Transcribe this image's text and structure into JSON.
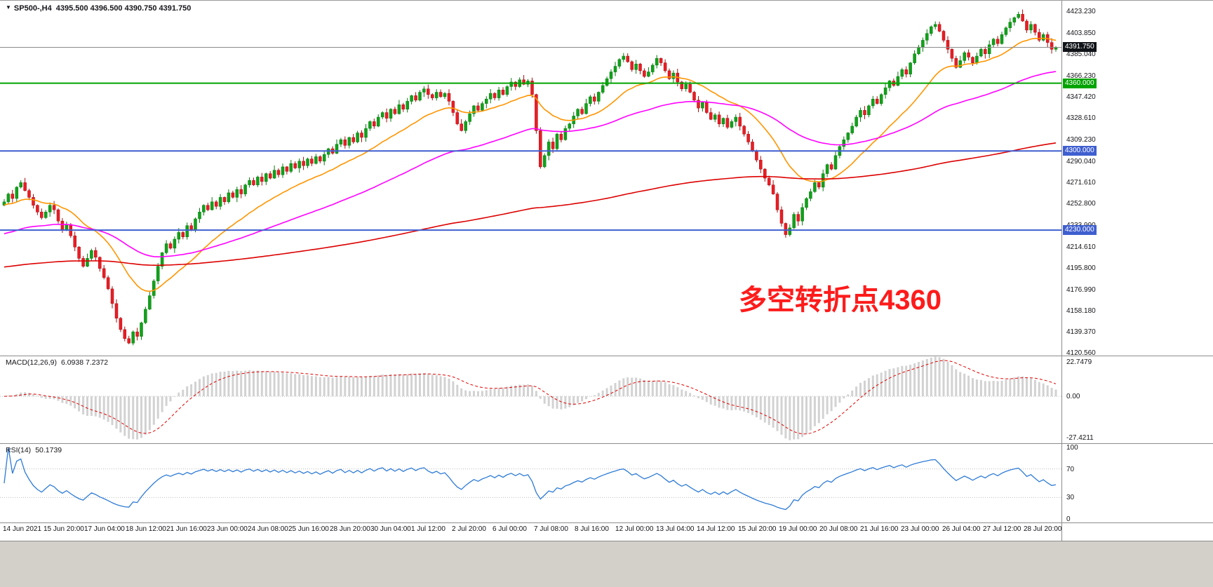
{
  "header": {
    "dropdown_icon": "▼",
    "symbol": "SP500-,H4",
    "ohlc": "4395.500 4396.500 4390.750 4391.750"
  },
  "annotation": {
    "text": "多空转折点4360"
  },
  "colors": {
    "up": "#10a21a",
    "up_dark": "#0a7a10",
    "down": "#ec1c24",
    "down_dark": "#a50d12",
    "price_line": "#8a8a8a",
    "price_badge_bg": "#101418",
    "macd_bar": "#d2d2d2",
    "macd_signal": "#e00000",
    "rsi_line": "#2e7bd6",
    "indicator_level": "#bdbdbd",
    "annotation": "#fe1b1b",
    "axis_text": "#15151a"
  },
  "price_axis": {
    "current_badge": "4391.750",
    "labels": [
      "4423.230",
      "4403.850",
      "4385.040",
      "4366.230",
      "4347.420",
      "4328.610",
      "4309.230",
      "4290.040",
      "4271.610",
      "4252.800",
      "4233.990",
      "4214.610",
      "4195.800",
      "4176.990",
      "4158.180",
      "4139.370",
      "4120.560"
    ]
  },
  "indicators": {
    "macd": {
      "label": "MACD(12,26,9)",
      "values": "6.0938 7.2372",
      "axis_labels": [
        "22.7479",
        "0.00",
        "-27.4211"
      ],
      "axis_values": [
        22.7479,
        0,
        -27.4211
      ],
      "params": {
        "fast": 12,
        "slow": 26,
        "signal": 9
      },
      "range": [
        26.5,
        -31
      ]
    },
    "rsi": {
      "label": "RSI(14)",
      "value": "50.1739",
      "axis_labels": [
        "100",
        "70",
        "30",
        "0"
      ],
      "axis_values": [
        100,
        70,
        30,
        0
      ],
      "levels": [
        70,
        30
      ],
      "period": 14,
      "range": [
        105,
        -5
      ]
    }
  },
  "time_axis": {
    "labels": [
      "14 Jun 2021",
      "15 Jun 20:00",
      "17 Jun 04:00",
      "18 Jun 12:00",
      "21 Jun 16:00",
      "23 Jun 00:00",
      "24 Jun 08:00",
      "25 Jun 16:00",
      "28 Jun 20:00",
      "30 Jun 04:00",
      "1 Jul 12:00",
      "2 Jul 20:00",
      "6 Jul 00:00",
      "7 Jul 08:00",
      "8 Jul 16:00",
      "12 Jul 00:00",
      "13 Jul 04:00",
      "14 Jul 12:00",
      "15 Jul 20:00",
      "19 Jul 00:00",
      "20 Jul 08:00",
      "21 Jul 16:00",
      "23 Jul 00:00",
      "26 Jul 04:00",
      "27 Jul 12:00",
      "28 Jul 20:00"
    ]
  },
  "chart_data": {
    "type": "candlestick",
    "symbol": "SP500-",
    "timeframe": "H4",
    "title": "SP500-,H4",
    "y_range": [
      4119,
      4433
    ],
    "current_price": 4391.75,
    "open_start": 4252,
    "closes": [
      4255,
      4262,
      4258,
      4268,
      4272,
      4265,
      4259,
      4252,
      4246,
      4241,
      4246,
      4252,
      4248,
      4238,
      4230,
      4235,
      4225,
      4215,
      4205,
      4198,
      4205,
      4212,
      4206,
      4196,
      4188,
      4178,
      4165,
      4152,
      4142,
      4134,
      4130,
      4140,
      4136,
      4148,
      4160,
      4172,
      4185,
      4198,
      4210,
      4218,
      4214,
      4222,
      4228,
      4224,
      4234,
      4230,
      4240,
      4246,
      4252,
      4248,
      4255,
      4251,
      4259,
      4255,
      4263,
      4259,
      4266,
      4262,
      4270,
      4274,
      4270,
      4277,
      4273,
      4280,
      4276,
      4283,
      4279,
      4286,
      4282,
      4289,
      4285,
      4291,
      4287,
      4293,
      4289,
      4295,
      4291,
      4297,
      4302,
      4298,
      4306,
      4310,
      4305,
      4312,
      4308,
      4316,
      4312,
      4320,
      4326,
      4322,
      4330,
      4334,
      4329,
      4337,
      4333,
      4341,
      4337,
      4344,
      4349,
      4345,
      4352,
      4355,
      4350,
      4347,
      4352,
      4348,
      4351,
      4344,
      4334,
      4324,
      4318,
      4326,
      4333,
      4340,
      4336,
      4342,
      4346,
      4351,
      4347,
      4354,
      4350,
      4357,
      4361,
      4357,
      4363,
      4359,
      4362,
      4350,
      4318,
      4286,
      4296,
      4308,
      4302,
      4315,
      4310,
      4320,
      4324,
      4331,
      4337,
      4333,
      4342,
      4348,
      4344,
      4352,
      4358,
      4364,
      4370,
      4375,
      4381,
      4384,
      4379,
      4372,
      4377,
      4371,
      4366,
      4370,
      4376,
      4382,
      4378,
      4371,
      4364,
      4369,
      4361,
      4355,
      4359,
      4352,
      4345,
      4338,
      4343,
      4334,
      4328,
      4332,
      4324,
      4329,
      4321,
      4326,
      4330,
      4322,
      4315,
      4308,
      4300,
      4292,
      4284,
      4276,
      4270,
      4262,
      4248,
      4236,
      4226,
      4232,
      4244,
      4238,
      4250,
      4258,
      4264,
      4272,
      4268,
      4280,
      4288,
      4284,
      4296,
      4304,
      4310,
      4316,
      4322,
      4330,
      4336,
      4332,
      4340,
      4346,
      4342,
      4350,
      4356,
      4362,
      4358,
      4366,
      4372,
      4368,
      4378,
      4386,
      4392,
      4398,
      4404,
      4410,
      4412,
      4406,
      4398,
      4390,
      4382,
      4374,
      4380,
      4387,
      4383,
      4378,
      4384,
      4390,
      4386,
      4394,
      4399,
      4395,
      4403,
      4409,
      4414,
      4418,
      4421,
      4415,
      4407,
      4412,
      4405,
      4398,
      4403,
      4396,
      4390,
      4391.75
    ],
    "wick_pattern": [
      2.5,
      1.2,
      3.6,
      0.9,
      2.2,
      4.2,
      1.6,
      2.9,
      0.7,
      3.1,
      1.9,
      2.4,
      3.8,
      1.1,
      2.7
    ],
    "ma": [
      {
        "name": "ma-fast",
        "period": 21,
        "seed": 4252,
        "color": "#ff9500"
      },
      {
        "name": "ma-medium",
        "period": 70,
        "seed": 4226,
        "color": "#ff00ff"
      },
      {
        "name": "ma-slow",
        "period": 300,
        "seed": 4197,
        "color": "#dd0000"
      }
    ],
    "levels": [
      {
        "price": 4360,
        "label": "4360.000",
        "color": "#00a400"
      },
      {
        "price": 4300,
        "label": "4300.000",
        "color": "#3f5fd0"
      },
      {
        "price": 4230,
        "label": "4230.000",
        "color": "#3f5fd0"
      }
    ]
  }
}
